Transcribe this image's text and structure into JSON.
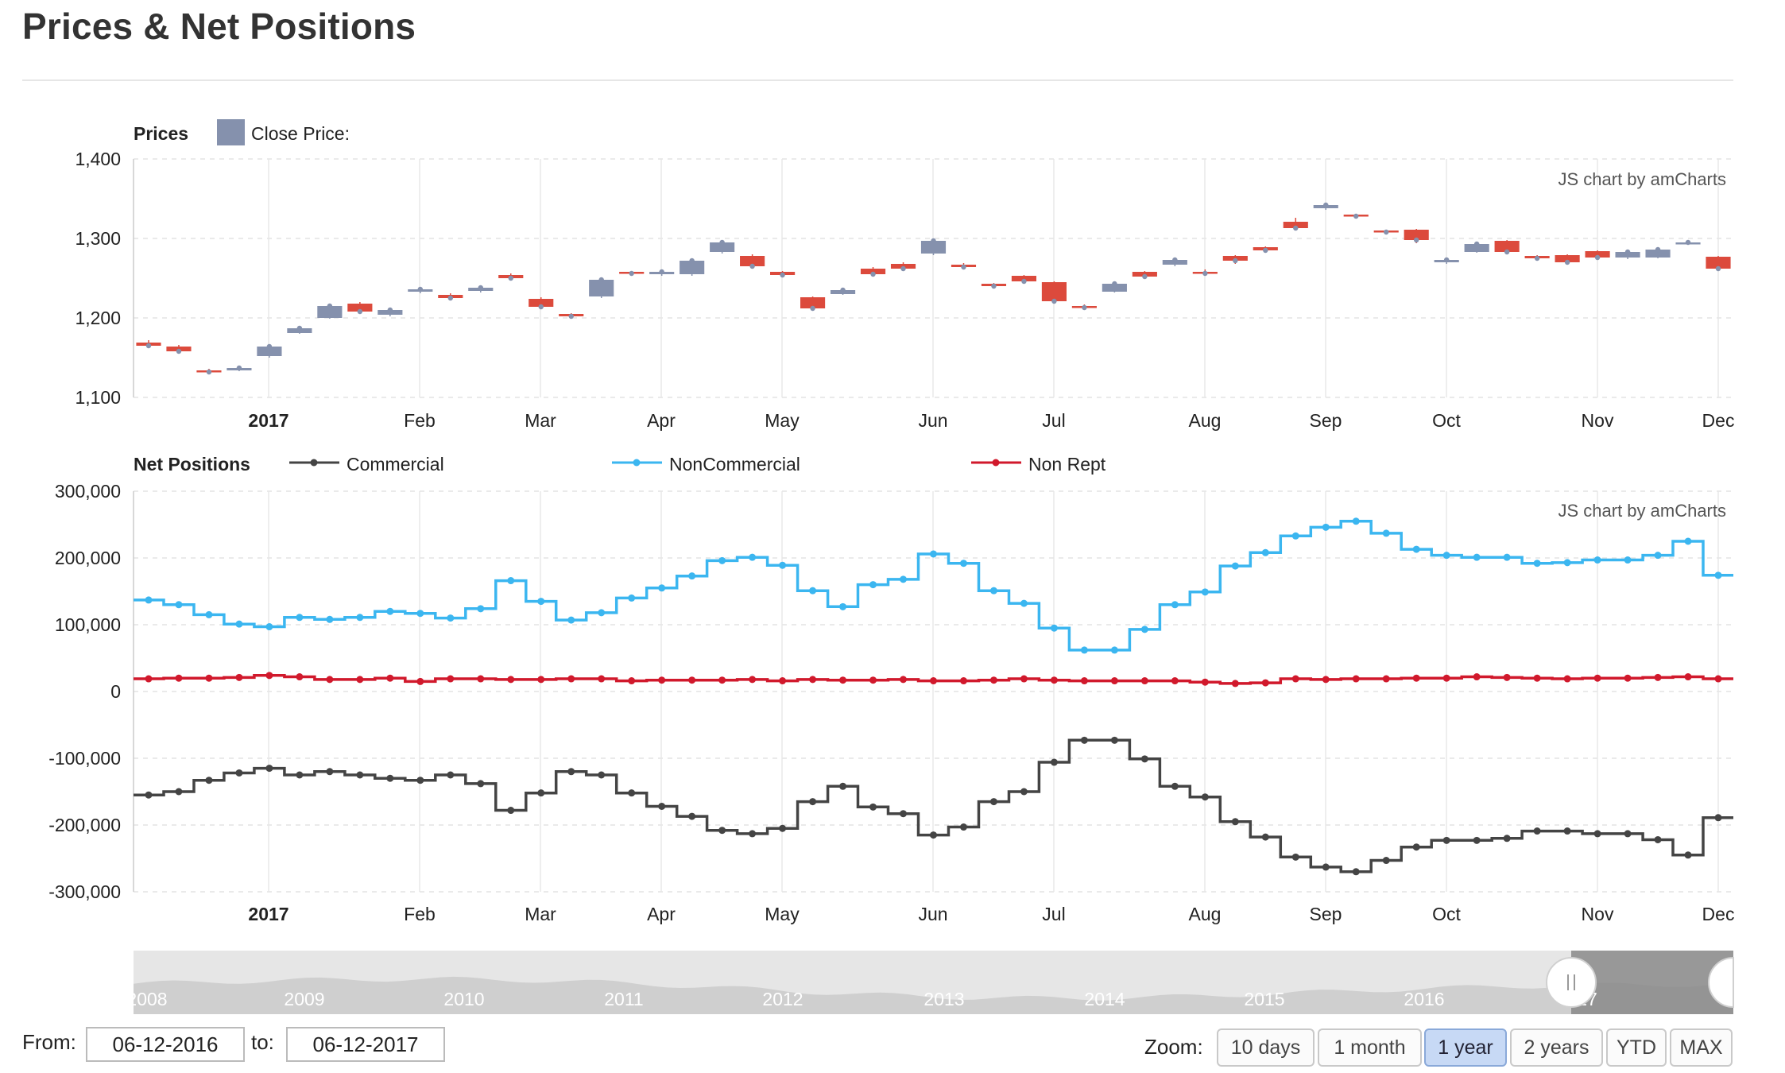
{
  "page": {
    "title": "Prices & Net Positions"
  },
  "credits": {
    "text": "JS chart by amCharts"
  },
  "colors": {
    "commercial": "#444444",
    "noncommercial": "#3bb6f0",
    "nonrept": "#d1192c",
    "candle_up": "#8591ad",
    "candle_down": "#dc4a3c",
    "scrollbar_bg": "#d8d8d8",
    "scrollbar_selected": "#8a8a8a"
  },
  "chart_data": [
    {
      "type": "candlestick",
      "panel_title": "Prices",
      "legend": [
        {
          "name": "Close Price:"
        }
      ],
      "ylim": [
        1100,
        1400
      ],
      "yticks": [
        1100,
        1200,
        1300,
        1400
      ],
      "ytick_labels": [
        "1,100",
        "1,200",
        "1,300",
        "1,400"
      ],
      "x_labels": [
        "2017",
        "Feb",
        "Mar",
        "Apr",
        "May",
        "Jun",
        "Jul",
        "Aug",
        "Sep",
        "Oct",
        "Nov",
        "Dec"
      ],
      "x_label_bold": "2017",
      "candles": [
        [
          1169,
          1165,
          1172,
          1163
        ],
        [
          1164,
          1158,
          1166,
          1156
        ],
        [
          1134,
          1132,
          1136,
          1129
        ],
        [
          1134,
          1137,
          1140,
          1133
        ],
        [
          1152,
          1164,
          1166,
          1150
        ],
        [
          1181,
          1187,
          1189,
          1180
        ],
        [
          1200,
          1215,
          1217,
          1199
        ],
        [
          1218,
          1208,
          1220,
          1206
        ],
        [
          1204,
          1210,
          1212,
          1202
        ],
        [
          1233,
          1236,
          1237,
          1231
        ],
        [
          1229,
          1225,
          1231,
          1223
        ],
        [
          1234,
          1238,
          1240,
          1232
        ],
        [
          1254,
          1250,
          1256,
          1249
        ],
        [
          1224,
          1214,
          1226,
          1213
        ],
        [
          1205,
          1202,
          1206,
          1199
        ],
        [
          1227,
          1248,
          1249,
          1225
        ],
        [
          1258,
          1256,
          1259,
          1254
        ],
        [
          1255,
          1258,
          1259,
          1253
        ],
        [
          1255,
          1272,
          1274,
          1253
        ],
        [
          1283,
          1295,
          1297,
          1281
        ],
        [
          1278,
          1265,
          1280,
          1264
        ],
        [
          1258,
          1254,
          1259,
          1253
        ],
        [
          1226,
          1212,
          1227,
          1211
        ],
        [
          1230,
          1235,
          1237,
          1229
        ],
        [
          1262,
          1255,
          1264,
          1253
        ],
        [
          1268,
          1262,
          1270,
          1260
        ],
        [
          1281,
          1297,
          1298,
          1279
        ],
        [
          1267,
          1264,
          1269,
          1262
        ],
        [
          1243,
          1240,
          1244,
          1239
        ],
        [
          1253,
          1246,
          1254,
          1245
        ],
        [
          1245,
          1221,
          1246,
          1218
        ],
        [
          1215,
          1213,
          1217,
          1211
        ],
        [
          1233,
          1243,
          1244,
          1232
        ],
        [
          1258,
          1252,
          1259,
          1250
        ],
        [
          1267,
          1273,
          1275,
          1265
        ],
        [
          1258,
          1256,
          1261,
          1254
        ],
        [
          1278,
          1272,
          1279,
          1268
        ],
        [
          1289,
          1285,
          1290,
          1284
        ],
        [
          1321,
          1313,
          1326,
          1312
        ],
        [
          1338,
          1342,
          1345,
          1336
        ],
        [
          1330,
          1328,
          1331,
          1325
        ],
        [
          1310,
          1308,
          1311,
          1306
        ],
        [
          1311,
          1298,
          1312,
          1294
        ],
        [
          1270,
          1273,
          1274,
          1268
        ],
        [
          1283,
          1293,
          1295,
          1282
        ],
        [
          1297,
          1283,
          1298,
          1281
        ],
        [
          1278,
          1275,
          1279,
          1273
        ],
        [
          1279,
          1270,
          1280,
          1268
        ],
        [
          1284,
          1276,
          1285,
          1275
        ],
        [
          1276,
          1283,
          1285,
          1274
        ],
        [
          1276,
          1286,
          1287,
          1275
        ],
        [
          1294,
          1295,
          1296,
          1293
        ],
        [
          1277,
          1262,
          1278,
          1259
        ]
      ]
    },
    {
      "type": "step-line",
      "panel_title": "Net Positions",
      "ylim": [
        -300000,
        300000
      ],
      "yticks": [
        -300000,
        -200000,
        -100000,
        0,
        100000,
        200000,
        300000
      ],
      "ytick_labels": [
        "-300,000",
        "-200,000",
        "-100,000",
        "0",
        "100,000",
        "200,000",
        "300,000"
      ],
      "x_labels": [
        "2017",
        "Feb",
        "Mar",
        "Apr",
        "May",
        "Jun",
        "Jul",
        "Aug",
        "Sep",
        "Oct",
        "Nov",
        "Dec"
      ],
      "x_label_bold": "2017",
      "series": [
        {
          "name": "Commercial",
          "values": [
            -155000,
            -150000,
            -133000,
            -122000,
            -115000,
            -125000,
            -120000,
            -125000,
            -130000,
            -133000,
            -125000,
            -138000,
            -178000,
            -152000,
            -120000,
            -125000,
            -152000,
            -172000,
            -187000,
            -208000,
            -213000,
            -205000,
            -165000,
            -142000,
            -173000,
            -183000,
            -215000,
            -203000,
            -165000,
            -150000,
            -106000,
            -73000,
            -73000,
            -101000,
            -142000,
            -158000,
            -195000,
            -218000,
            -248000,
            -263000,
            -270000,
            -253000,
            -233000,
            -223000,
            -223000,
            -220000,
            -209000,
            -209000,
            -213000,
            -213000,
            -222000,
            -245000,
            -189000
          ]
        },
        {
          "name": "NonCommercial",
          "values": [
            137000,
            130000,
            115000,
            101000,
            97000,
            111000,
            108000,
            111000,
            120000,
            117000,
            110000,
            124000,
            166000,
            135000,
            107000,
            118000,
            140000,
            155000,
            173000,
            196000,
            201000,
            189000,
            151000,
            127000,
            160000,
            168000,
            206000,
            192000,
            151000,
            132000,
            95000,
            62000,
            62000,
            93000,
            130000,
            149000,
            188000,
            208000,
            233000,
            246000,
            255000,
            237000,
            213000,
            204000,
            201000,
            201000,
            192000,
            193000,
            197000,
            197000,
            204000,
            225000,
            174000
          ]
        },
        {
          "name": "Non Rept",
          "values": [
            19000,
            20000,
            20000,
            21000,
            24000,
            22000,
            18000,
            18000,
            20000,
            15000,
            19000,
            19000,
            18000,
            18000,
            19000,
            19000,
            16000,
            17000,
            17000,
            17000,
            18000,
            16000,
            18000,
            17000,
            17000,
            18000,
            16000,
            16000,
            17000,
            19000,
            17000,
            16000,
            16000,
            16000,
            16000,
            14000,
            12000,
            13000,
            19000,
            18000,
            19000,
            19000,
            20000,
            20000,
            22000,
            21000,
            20000,
            19000,
            20000,
            20000,
            21000,
            22000,
            19000
          ]
        }
      ]
    }
  ],
  "navigator": {
    "year_labels": [
      "2008",
      "2009",
      "2010",
      "2011",
      "2012",
      "2013",
      "2014",
      "2015",
      "2016",
      "17"
    ]
  },
  "footer": {
    "from_label": "From:",
    "from_value": "06-12-2016",
    "to_label": "to:",
    "to_value": "06-12-2017",
    "zoom_label": "Zoom:",
    "zoom_buttons": [
      "10 days",
      "1 month",
      "1 year",
      "2 years",
      "YTD",
      "MAX"
    ],
    "zoom_active": "1 year"
  }
}
